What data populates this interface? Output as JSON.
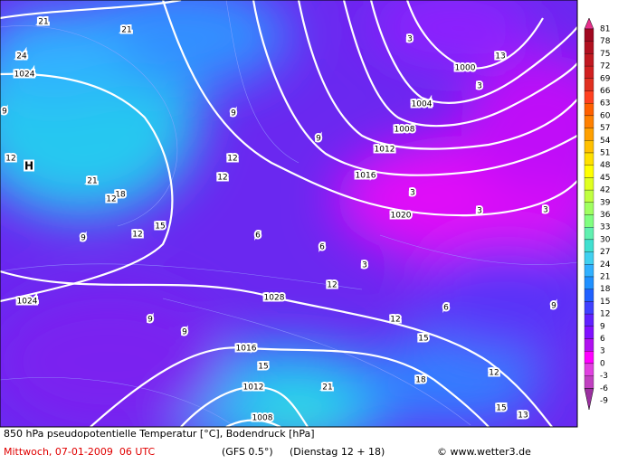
{
  "header": {
    "title": "850 hPa pseudopotentielle Temperatur [°C], Bodendruck [hPa]",
    "date": "Mittwoch, 07-01-2009  06 UTC",
    "model": "(GFS 0.5°)",
    "run": "(Dienstag 12 + 18)",
    "credit": "© www.wetter3.de"
  },
  "map": {
    "high_label": "H",
    "pressure_labels": [
      "1024",
      "1000",
      "1004",
      "1008",
      "1012",
      "1016",
      "1020",
      "1024",
      "1028",
      "1016",
      "1012",
      "1008"
    ],
    "temperature_labels": [
      21,
      21,
      24,
      9,
      12,
      21,
      18,
      12,
      15,
      12,
      9,
      9,
      12,
      12,
      9,
      6,
      6,
      3,
      3,
      3,
      3,
      3,
      3,
      12,
      12,
      9,
      9,
      15,
      15,
      18,
      12,
      15,
      13,
      21,
      9,
      6,
      13
    ]
  },
  "legend": {
    "levels": [
      {
        "value": 81,
        "color": "#e8308c"
      },
      {
        "value": 78,
        "color": "#a00820"
      },
      {
        "value": 75,
        "color": "#b01020"
      },
      {
        "value": 72,
        "color": "#c01820"
      },
      {
        "value": 69,
        "color": "#d02020"
      },
      {
        "value": 66,
        "color": "#e03020"
      },
      {
        "value": 63,
        "color": "#ff4020"
      },
      {
        "value": 60,
        "color": "#ff6000"
      },
      {
        "value": 57,
        "color": "#ff8000"
      },
      {
        "value": 54,
        "color": "#ffa000"
      },
      {
        "value": 51,
        "color": "#ffc000"
      },
      {
        "value": 48,
        "color": "#ffe000"
      },
      {
        "value": 45,
        "color": "#ffff00"
      },
      {
        "value": 42,
        "color": "#e0ff20"
      },
      {
        "value": 39,
        "color": "#c0ff40"
      },
      {
        "value": 36,
        "color": "#a0ff60"
      },
      {
        "value": 33,
        "color": "#80ff80"
      },
      {
        "value": 30,
        "color": "#60f0b0"
      },
      {
        "value": 27,
        "color": "#40e0d0"
      },
      {
        "value": 24,
        "color": "#40d0f0"
      },
      {
        "value": 21,
        "color": "#30b0ff"
      },
      {
        "value": 18,
        "color": "#2090ff"
      },
      {
        "value": 15,
        "color": "#2060ff"
      },
      {
        "value": 12,
        "color": "#4040ff"
      },
      {
        "value": 9,
        "color": "#6020ff"
      },
      {
        "value": 6,
        "color": "#8010ff"
      },
      {
        "value": 3,
        "color": "#b010f0"
      },
      {
        "value": 0,
        "color": "#ff00ff"
      },
      {
        "value": -3,
        "color": "#e040e0"
      },
      {
        "value": -6,
        "color": "#c040c0"
      },
      {
        "value": -9,
        "color": "#9b30a0"
      }
    ]
  }
}
